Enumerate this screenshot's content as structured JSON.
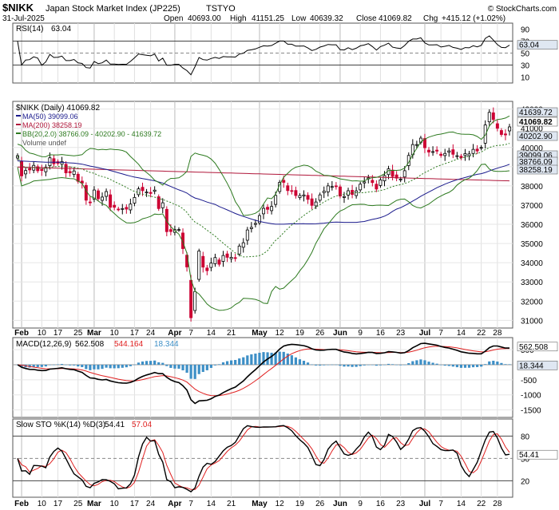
{
  "header": {
    "symbol": "$NIKK",
    "name": "Japan Stock Market Index (JP225)",
    "exchange": "TSTYO",
    "date": "31-Jul-2025",
    "open_label": "Open",
    "open": "40693.00",
    "high_label": "High",
    "high": "41151.25",
    "low_label": "Low",
    "low": "40639.32",
    "close_label": "Close",
    "close": "41069.82",
    "chg_label": "Chg",
    "chg": "+415.12 (+1.02%)",
    "watermark": "© StockCharts.com"
  },
  "rsi": {
    "label": "RSI(14)",
    "value": "63.04",
    "ticks": [
      "90",
      "70",
      "50",
      "30",
      "10"
    ],
    "tag": "63.04"
  },
  "price": {
    "label": "$NIKK (Daily) 41069.82",
    "ma50_label": "MA(50) 39099.06",
    "ma200_label": "MA(200) 38258.19",
    "bb_label": "BB(20,2.0) 38766.09 - 40202.90 - 41639.72",
    "volume_label": "Volume undef",
    "ticks": [
      "42000",
      "41000",
      "40000",
      "39000",
      "38000",
      "37000",
      "36000",
      "35000",
      "34000",
      "33000",
      "32000",
      "31000"
    ],
    "tags": {
      "bb_upper": "41639.72",
      "close": "41069.82",
      "bb_mid": "40202.90",
      "ma50": "39099.06",
      "bb_lower": "38766.09",
      "ma200": "38258.19"
    }
  },
  "macd": {
    "label": "MACD(12,26,9)",
    "v1": "562.508",
    "v2": "544.164",
    "v3": "18.344",
    "ticks": [
      "500",
      "0",
      "-500",
      "-1000",
      "-1500"
    ],
    "tags": {
      "macd": "562.508",
      "hist": "18.344"
    }
  },
  "sto": {
    "label": "Slow STO %K(14) %D(3)",
    "v1": "54.41",
    "v2": "57.04",
    "ticks": [
      "80",
      "50",
      "20"
    ],
    "tag": "54.41"
  },
  "xaxis": [
    "Feb",
    "10",
    "17",
    "25",
    "Mar",
    "10",
    "17",
    "24",
    "Apr",
    "7",
    "14",
    "21",
    "May",
    "12",
    "19",
    "26",
    "Jun",
    "9",
    "16",
    "23",
    "Jul",
    "7",
    "14",
    "22",
    "28"
  ],
  "colors": {
    "up": "#000000",
    "down": "#cc0033",
    "ma50": "#1a1a8c",
    "ma200": "#b0173a",
    "bb": "#2d7a1f",
    "macd_signal": "#e02020",
    "hist": "#3d8fc6",
    "rsi_up": "#3c7a3c",
    "rsi_down": "#8c5a5a",
    "tag_bg": "#dfe7f2"
  },
  "chart_data": {
    "type": "candlestick",
    "x": [
      "2025-01-31",
      "2025-02-03",
      "2025-02-04",
      "2025-02-05",
      "2025-02-06",
      "2025-02-07",
      "2025-02-10",
      "2025-02-12",
      "2025-02-13",
      "2025-02-14",
      "2025-02-17",
      "2025-02-18",
      "2025-02-19",
      "2025-02-20",
      "2025-02-21",
      "2025-02-25",
      "2025-02-26",
      "2025-02-27",
      "2025-02-28",
      "2025-03-03",
      "2025-03-04",
      "2025-03-05",
      "2025-03-06",
      "2025-03-07",
      "2025-03-10",
      "2025-03-11",
      "2025-03-12",
      "2025-03-13",
      "2025-03-14",
      "2025-03-17",
      "2025-03-18",
      "2025-03-19",
      "2025-03-21",
      "2025-03-24",
      "2025-03-25",
      "2025-03-26",
      "2025-03-27",
      "2025-03-28",
      "2025-03-31",
      "2025-04-01",
      "2025-04-02",
      "2025-04-03",
      "2025-04-04",
      "2025-04-07",
      "2025-04-08",
      "2025-04-09",
      "2025-04-10",
      "2025-04-11",
      "2025-04-14",
      "2025-04-15",
      "2025-04-16",
      "2025-04-17",
      "2025-04-18",
      "2025-04-21",
      "2025-04-22",
      "2025-04-23",
      "2025-04-24",
      "2025-04-25",
      "2025-04-28",
      "2025-04-30",
      "2025-05-01",
      "2025-05-02",
      "2025-05-07",
      "2025-05-08",
      "2025-05-09",
      "2025-05-12",
      "2025-05-13",
      "2025-05-14",
      "2025-05-15",
      "2025-05-16",
      "2025-05-19",
      "2025-05-20",
      "2025-05-21",
      "2025-05-22",
      "2025-05-23",
      "2025-05-26",
      "2025-05-27",
      "2025-05-28",
      "2025-05-29",
      "2025-05-30",
      "2025-06-02",
      "2025-06-03",
      "2025-06-04",
      "2025-06-05",
      "2025-06-06",
      "2025-06-09",
      "2025-06-10",
      "2025-06-11",
      "2025-06-12",
      "2025-06-13",
      "2025-06-16",
      "2025-06-17",
      "2025-06-18",
      "2025-06-19",
      "2025-06-20",
      "2025-06-23",
      "2025-06-24",
      "2025-06-25",
      "2025-06-26",
      "2025-06-27",
      "2025-06-30",
      "2025-07-01",
      "2025-07-02",
      "2025-07-03",
      "2025-07-04",
      "2025-07-07",
      "2025-07-08",
      "2025-07-09",
      "2025-07-10",
      "2025-07-11",
      "2025-07-14",
      "2025-07-15",
      "2025-07-16",
      "2025-07-17",
      "2025-07-18",
      "2025-07-22",
      "2025-07-23",
      "2025-07-24",
      "2025-07-25",
      "2025-07-28",
      "2025-07-29",
      "2025-07-30",
      "2025-07-31"
    ],
    "series": [
      {
        "name": "$NIKK",
        "close": [
          39572,
          38520,
          38798,
          38831,
          39066,
          38787,
          38801,
          38963,
          39461,
          39149,
          39174,
          39270,
          38678,
          38678,
          38776,
          38237,
          38142,
          37256,
          37155,
          37785,
          37331,
          37418,
          37704,
          36887,
          36887,
          36793,
          36819,
          36790,
          37053,
          37396,
          37845,
          37751,
          37677,
          37608,
          37780,
          36820,
          37120,
          35617,
          35624,
          35725,
          35725,
          34735,
          33780,
          31136,
          32500,
          34609,
          33771,
          33586,
          33982,
          34267,
          33920,
          34377,
          34280,
          34280,
          34220,
          34868,
          35039,
          35705,
          35839,
          36045,
          36452,
          36830,
          36779,
          36928,
          37503,
          38183,
          38183,
          37755,
          37753,
          37498,
          37498,
          37529,
          37299,
          36985,
          37160,
          37531,
          37724,
          38000,
          37965,
          37965,
          37470,
          37446,
          37747,
          37554,
          37741,
          38088,
          38211,
          38421,
          38173,
          37834,
          38311,
          38536,
          38885,
          38488,
          38403,
          38354,
          38790,
          39584,
          40151,
          40150,
          40487,
          39986,
          39762,
          39785,
          39810,
          39588,
          39688,
          39821,
          39646,
          39569,
          39459,
          39678,
          39663,
          39901,
          39819,
          40000,
          41171,
          41826,
          41456,
          40998,
          40675,
          40654,
          41070
        ]
      },
      {
        "name": "MA(50)"
      },
      {
        "name": "MA(200)"
      },
      {
        "name": "BB(20,2.0)"
      }
    ],
    "ylim": [
      30600,
      42400
    ]
  }
}
